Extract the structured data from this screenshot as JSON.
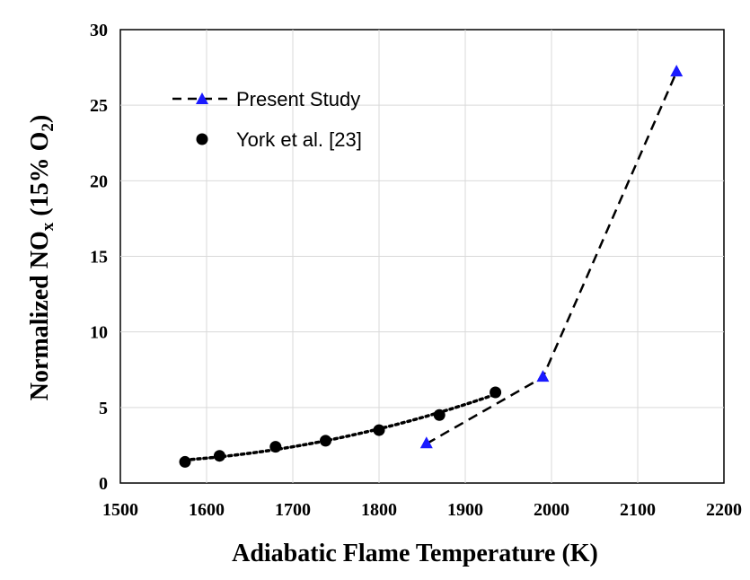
{
  "chart_data": {
    "type": "scatter",
    "xlabel": "Adiabatic Flame Temperature (K)",
    "ylabel_parts": {
      "prefix": "Normalized NO",
      "sub": "x",
      "middle": " (15% O",
      "sub2": "2",
      "suffix": ")"
    },
    "xlim": [
      1500,
      2200
    ],
    "ylim": [
      0,
      30
    ],
    "x_ticks": [
      1500,
      1600,
      1700,
      1800,
      1900,
      2000,
      2100,
      2200
    ],
    "y_ticks": [
      0,
      5,
      10,
      15,
      20,
      25,
      30
    ],
    "grid": true,
    "legend_position": "top-left",
    "series": [
      {
        "name": "Present Study",
        "marker": "triangle",
        "line": "dashed",
        "color": "#1a1aff",
        "line_color": "#000000",
        "x": [
          1855,
          1990,
          2145
        ],
        "y": [
          2.6,
          7.0,
          27.2
        ]
      },
      {
        "name": "York et al. [23]",
        "marker": "circle",
        "line": "dotted-trend",
        "color": "#000000",
        "line_color": "#000000",
        "x": [
          1575,
          1615,
          1680,
          1738,
          1800,
          1870,
          1935
        ],
        "y": [
          1.4,
          1.8,
          2.4,
          2.8,
          3.5,
          4.5,
          6.0
        ]
      }
    ]
  }
}
